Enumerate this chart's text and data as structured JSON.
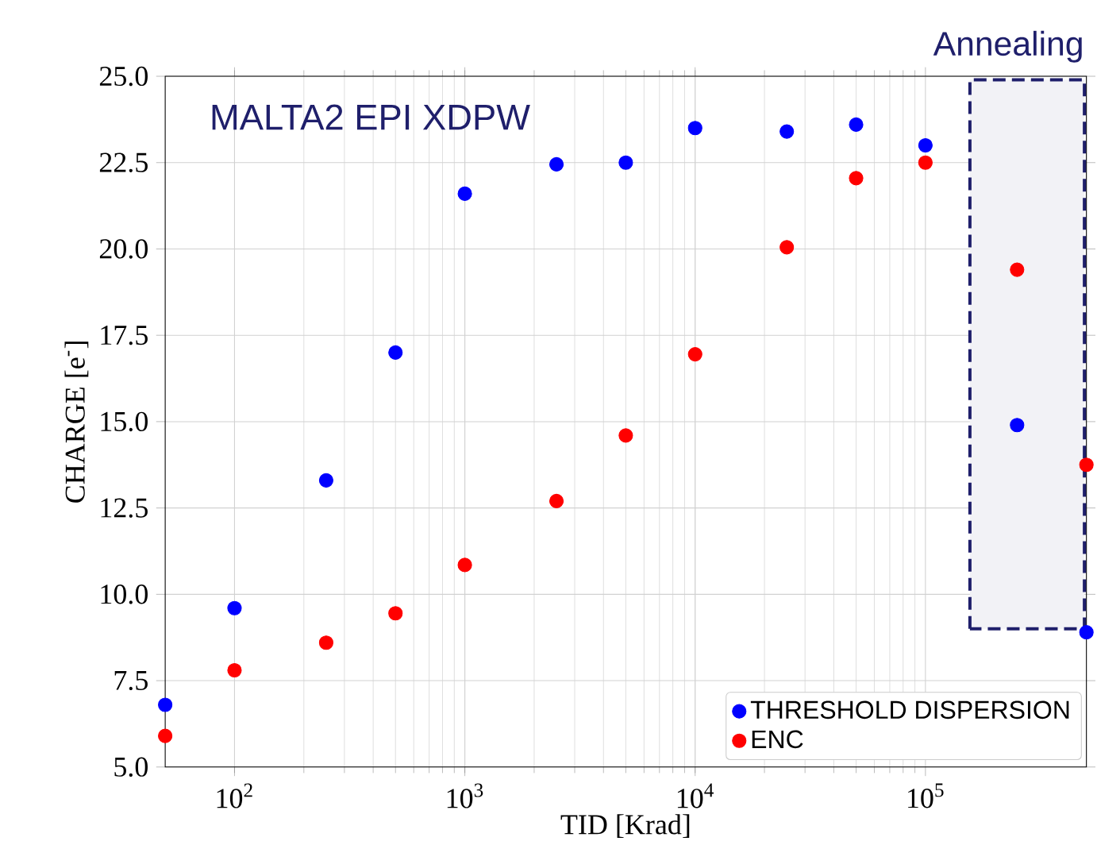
{
  "chart_data": {
    "type": "scatter",
    "xlabel": "TID [Krad]",
    "ylabel": "CHARGE [e$^{-}$]",
    "annotations": [
      "MALTA2 EPI XDPW"
    ],
    "x": [
      50,
      100,
      250,
      500,
      1000,
      2500,
      5000,
      10000,
      25000,
      50000,
      100000,
      250000,
      500000
    ],
    "series": [
      {
        "name": "THRESHOLD DISPERSION",
        "color": "#0000ff",
        "values": [
          6.8,
          9.6,
          13.3,
          17.0,
          21.6,
          22.45,
          22.5,
          23.5,
          23.4,
          23.6,
          23.0,
          14.9,
          8.9
        ]
      },
      {
        "name": "ENC",
        "color": "#ff0000",
        "values": [
          5.9,
          7.8,
          8.6,
          9.45,
          10.85,
          12.7,
          14.6,
          16.95,
          20.05,
          22.05,
          22.5,
          19.4,
          13.75
        ]
      }
    ],
    "xlim": [
      50,
      500000
    ],
    "xticks": [
      {
        "value": 100,
        "label": "10$^{2}$"
      },
      {
        "value": 1000,
        "label": "10$^{3}$"
      },
      {
        "value": 10000,
        "label": "10$^{4}$"
      },
      {
        "value": 100000,
        "label": "10$^{5}$"
      }
    ],
    "ylim": [
      5,
      25
    ],
    "yticks": [
      {
        "value": 5,
        "label": "5.0"
      },
      {
        "value": 7.5,
        "label": "7.5"
      },
      {
        "value": 10,
        "label": "10.0"
      },
      {
        "value": 12.5,
        "label": "12.5"
      },
      {
        "value": 15,
        "label": "15.0"
      },
      {
        "value": 17.5,
        "label": "17.5"
      },
      {
        "value": 20,
        "label": "20.0"
      },
      {
        "value": 22.5,
        "label": "22.5"
      },
      {
        "value": 25,
        "label": "25.0"
      }
    ],
    "bands": [
      {
        "axis": "x",
        "from": 156000,
        "to": 490000,
        "label": "Annealing",
        "color": "#1f1f6b"
      }
    ],
    "log": "x",
    "grid": true,
    "legend": "bottom right",
    "marker": "circle"
  }
}
